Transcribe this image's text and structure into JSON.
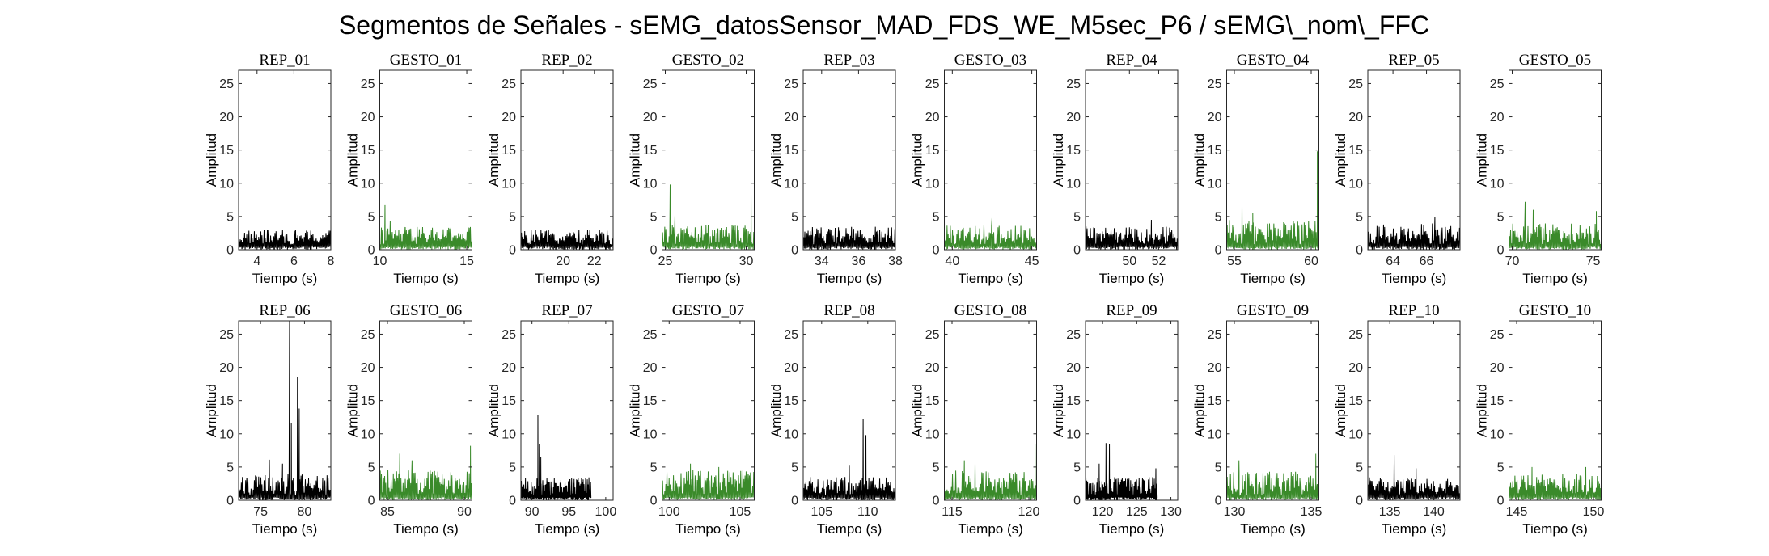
{
  "figure": {
    "title": "Segmentos de Señales - sEMG_datosSensor_MAD_FDS_WE_M5sec_P6 / sEMG\\_nom\\_FFC"
  },
  "colors": {
    "rep": "#000000",
    "gesto": "#3a8a2a",
    "axes": "#262626"
  },
  "chart_data": [
    {
      "type": "line",
      "title": "REP_01",
      "xlabel": "Tiempo (s)",
      "ylabel": "Amplitud",
      "xlim": [
        3,
        8
      ],
      "ylim": [
        0,
        27
      ],
      "xticks": [
        4,
        6,
        8
      ],
      "yticks": [
        0,
        5,
        10,
        15,
        20,
        25
      ],
      "series": [
        {
          "data_range": [
            3,
            8
          ],
          "baseline_max": 3,
          "peaks": []
        }
      ]
    },
    {
      "type": "line",
      "title": "GESTO_01",
      "xlabel": "Tiempo (s)",
      "ylabel": "Amplitud",
      "xlim": [
        10,
        15.3
      ],
      "ylim": [
        0,
        27
      ],
      "xticks": [
        10,
        15
      ],
      "yticks": [
        0,
        5,
        10,
        15,
        20,
        25
      ],
      "series": [
        {
          "data_range": [
            10,
            15.3
          ],
          "baseline_max": 3.5,
          "peaks": [
            [
              10.3,
              6.7
            ],
            [
              10.6,
              4.3
            ]
          ]
        }
      ]
    },
    {
      "type": "line",
      "title": "REP_02",
      "xlabel": "Tiempo (s)",
      "ylabel": "Amplitud",
      "xlim": [
        17.3,
        23.2
      ],
      "ylim": [
        0,
        27
      ],
      "xticks": [
        20,
        22
      ],
      "yticks": [
        0,
        5,
        10,
        15,
        20,
        25
      ],
      "series": [
        {
          "data_range": [
            17.3,
            23.2
          ],
          "baseline_max": 3,
          "peaks": []
        }
      ]
    },
    {
      "type": "line",
      "title": "GESTO_02",
      "xlabel": "Tiempo (s)",
      "ylabel": "Amplitud",
      "xlim": [
        24.8,
        30.5
      ],
      "ylim": [
        0,
        27
      ],
      "xticks": [
        25,
        30
      ],
      "yticks": [
        0,
        5,
        10,
        15,
        20,
        25
      ],
      "series": [
        {
          "data_range": [
            24.8,
            30.5
          ],
          "baseline_max": 3.8,
          "peaks": [
            [
              25.3,
              9.8
            ],
            [
              25.6,
              5.2
            ],
            [
              30.3,
              8.4
            ]
          ]
        }
      ]
    },
    {
      "type": "line",
      "title": "REP_03",
      "xlabel": "Tiempo (s)",
      "ylabel": "Amplitud",
      "xlim": [
        33,
        38
      ],
      "ylim": [
        0,
        27
      ],
      "xticks": [
        34,
        36,
        38
      ],
      "yticks": [
        0,
        5,
        10,
        15,
        20,
        25
      ],
      "series": [
        {
          "data_range": [
            33,
            38
          ],
          "baseline_max": 3.5,
          "peaks": []
        }
      ]
    },
    {
      "type": "line",
      "title": "GESTO_03",
      "xlabel": "Tiempo (s)",
      "ylabel": "Amplitud",
      "xlim": [
        39.5,
        45.3
      ],
      "ylim": [
        0,
        27
      ],
      "xticks": [
        40,
        45
      ],
      "yticks": [
        0,
        5,
        10,
        15,
        20,
        25
      ],
      "series": [
        {
          "data_range": [
            39.5,
            45.3
          ],
          "baseline_max": 3.8,
          "peaks": [
            [
              42.5,
              4.8
            ]
          ]
        }
      ]
    },
    {
      "type": "line",
      "title": "REP_04",
      "xlabel": "Tiempo (s)",
      "ylabel": "Amplitud",
      "xlim": [
        47,
        53.3
      ],
      "ylim": [
        0,
        27
      ],
      "xticks": [
        50,
        52
      ],
      "yticks": [
        0,
        5,
        10,
        15,
        20,
        25
      ],
      "series": [
        {
          "data_range": [
            47,
            53.3
          ],
          "baseline_max": 3.5,
          "peaks": [
            [
              51.5,
              4.5
            ]
          ]
        }
      ]
    },
    {
      "type": "line",
      "title": "GESTO_04",
      "xlabel": "Tiempo (s)",
      "ylabel": "Amplitud",
      "xlim": [
        54.5,
        60.5
      ],
      "ylim": [
        0,
        27
      ],
      "xticks": [
        55,
        60
      ],
      "yticks": [
        0,
        5,
        10,
        15,
        20,
        25
      ],
      "series": [
        {
          "data_range": [
            54.5,
            60.5
          ],
          "baseline_max": 4.5,
          "peaks": [
            [
              55.5,
              6.5
            ],
            [
              56.2,
              5.5
            ],
            [
              60.4,
              14.8
            ]
          ]
        }
      ]
    },
    {
      "type": "line",
      "title": "REP_05",
      "xlabel": "Tiempo (s)",
      "ylabel": "Amplitud",
      "xlim": [
        62.5,
        68
      ],
      "ylim": [
        0,
        27
      ],
      "xticks": [
        64,
        66
      ],
      "yticks": [
        0,
        5,
        10,
        15,
        20,
        25
      ],
      "series": [
        {
          "data_range": [
            62.5,
            68
          ],
          "baseline_max": 4,
          "peaks": [
            [
              66.5,
              4.9
            ]
          ]
        }
      ]
    },
    {
      "type": "line",
      "title": "GESTO_05",
      "xlabel": "Tiempo (s)",
      "ylabel": "Amplitud",
      "xlim": [
        69.8,
        75.5
      ],
      "ylim": [
        0,
        27
      ],
      "xticks": [
        70,
        75
      ],
      "yticks": [
        0,
        5,
        10,
        15,
        20,
        25
      ],
      "series": [
        {
          "data_range": [
            69.8,
            75.5
          ],
          "baseline_max": 4,
          "peaks": [
            [
              70.8,
              7.2
            ],
            [
              71.3,
              6
            ],
            [
              75.2,
              5.8
            ]
          ]
        }
      ]
    },
    {
      "type": "line",
      "title": "REP_06",
      "xlabel": "Tiempo (s)",
      "ylabel": "Amplitud",
      "xlim": [
        72.5,
        83
      ],
      "ylim": [
        0,
        27
      ],
      "xticks": [
        75,
        80
      ],
      "yticks": [
        0,
        5,
        10,
        15,
        20,
        25
      ],
      "series": [
        {
          "data_range": [
            72.5,
            83
          ],
          "baseline_max": 4,
          "peaks": [
            [
              76,
              6.1
            ],
            [
              77.5,
              5.5
            ],
            [
              78.3,
              27
            ],
            [
              78.5,
              11.6
            ],
            [
              79.2,
              18.5
            ],
            [
              79.4,
              13.8
            ]
          ]
        }
      ]
    },
    {
      "type": "line",
      "title": "GESTO_06",
      "xlabel": "Tiempo (s)",
      "ylabel": "Amplitud",
      "xlim": [
        84.5,
        90.5
      ],
      "ylim": [
        0,
        27
      ],
      "xticks": [
        85,
        90
      ],
      "yticks": [
        0,
        5,
        10,
        15,
        20,
        25
      ],
      "series": [
        {
          "data_range": [
            84.5,
            90.5
          ],
          "baseline_max": 4.5,
          "peaks": [
            [
              85.8,
              7
            ],
            [
              86.6,
              6
            ],
            [
              90.4,
              8.2
            ]
          ]
        }
      ]
    },
    {
      "type": "line",
      "title": "REP_07",
      "xlabel": "Tiempo (s)",
      "ylabel": "Amplitud",
      "xlim": [
        88.5,
        101
      ],
      "ylim": [
        0,
        27
      ],
      "xticks": [
        90,
        95,
        100
      ],
      "yticks": [
        0,
        5,
        10,
        15,
        20,
        25
      ],
      "series": [
        {
          "data_range": [
            88.5,
            98
          ],
          "baseline_max": 3.5,
          "peaks": [
            [
              90.8,
              12.8
            ],
            [
              91,
              8.5
            ],
            [
              91.2,
              6.5
            ]
          ]
        }
      ]
    },
    {
      "type": "line",
      "title": "GESTO_07",
      "xlabel": "Tiempo (s)",
      "ylabel": "Amplitud",
      "xlim": [
        99.5,
        106
      ],
      "ylim": [
        0,
        27
      ],
      "xticks": [
        100,
        105
      ],
      "yticks": [
        0,
        5,
        10,
        15,
        20,
        25
      ],
      "series": [
        {
          "data_range": [
            99.5,
            106
          ],
          "baseline_max": 4.5,
          "peaks": [
            [
              101.5,
              5.5
            ],
            [
              103.5,
              5
            ]
          ]
        }
      ]
    },
    {
      "type": "line",
      "title": "REP_08",
      "xlabel": "Tiempo (s)",
      "ylabel": "Amplitud",
      "xlim": [
        103,
        113
      ],
      "ylim": [
        0,
        27
      ],
      "xticks": [
        105,
        110
      ],
      "yticks": [
        0,
        5,
        10,
        15,
        20,
        25
      ],
      "series": [
        {
          "data_range": [
            103,
            113
          ],
          "baseline_max": 3.5,
          "peaks": [
            [
              109.5,
              12.2
            ],
            [
              109.8,
              9.8
            ],
            [
              108,
              5.2
            ]
          ]
        }
      ]
    },
    {
      "type": "line",
      "title": "GESTO_08",
      "xlabel": "Tiempo (s)",
      "ylabel": "Amplitud",
      "xlim": [
        114.5,
        120.5
      ],
      "ylim": [
        0,
        27
      ],
      "xticks": [
        115,
        120
      ],
      "yticks": [
        0,
        5,
        10,
        15,
        20,
        25
      ],
      "series": [
        {
          "data_range": [
            114.5,
            120.5
          ],
          "baseline_max": 4.5,
          "peaks": [
            [
              115.8,
              6
            ],
            [
              116.5,
              5.5
            ],
            [
              120.4,
              8.5
            ]
          ]
        }
      ]
    },
    {
      "type": "line",
      "title": "REP_09",
      "xlabel": "Tiempo (s)",
      "ylabel": "Amplitud",
      "xlim": [
        117.5,
        131
      ],
      "ylim": [
        0,
        27
      ],
      "xticks": [
        120,
        125,
        130
      ],
      "yticks": [
        0,
        5,
        10,
        15,
        20,
        25
      ],
      "series": [
        {
          "data_range": [
            117.5,
            128
          ],
          "baseline_max": 3.5,
          "peaks": [
            [
              120.5,
              8.6
            ],
            [
              121,
              8.4
            ],
            [
              119.5,
              5.5
            ],
            [
              127.8,
              4.8
            ]
          ]
        }
      ]
    },
    {
      "type": "line",
      "title": "GESTO_09",
      "xlabel": "Tiempo (s)",
      "ylabel": "Amplitud",
      "xlim": [
        129.5,
        135.5
      ],
      "ylim": [
        0,
        27
      ],
      "xticks": [
        130,
        135
      ],
      "yticks": [
        0,
        5,
        10,
        15,
        20,
        25
      ],
      "series": [
        {
          "data_range": [
            129.5,
            135.5
          ],
          "baseline_max": 4.3,
          "peaks": [
            [
              130.3,
              6
            ],
            [
              135.3,
              7
            ]
          ]
        }
      ]
    },
    {
      "type": "line",
      "title": "REP_10",
      "xlabel": "Tiempo (s)",
      "ylabel": "Amplitud",
      "xlim": [
        132.5,
        143
      ],
      "ylim": [
        0,
        27
      ],
      "xticks": [
        135,
        140
      ],
      "yticks": [
        0,
        5,
        10,
        15,
        20,
        25
      ],
      "series": [
        {
          "data_range": [
            132.5,
            143
          ],
          "baseline_max": 3.5,
          "peaks": [
            [
              135.5,
              6.8
            ],
            [
              138,
              4.8
            ]
          ]
        }
      ]
    },
    {
      "type": "line",
      "title": "GESTO_10",
      "xlabel": "Tiempo (s)",
      "ylabel": "Amplitud",
      "xlim": [
        144.5,
        150.5
      ],
      "ylim": [
        0,
        27
      ],
      "xticks": [
        145,
        150
      ],
      "yticks": [
        0,
        5,
        10,
        15,
        20,
        25
      ],
      "series": [
        {
          "data_range": [
            144.5,
            150.5
          ],
          "baseline_max": 4,
          "peaks": [
            [
              146,
              5
            ],
            [
              149.5,
              5
            ]
          ]
        }
      ]
    }
  ]
}
